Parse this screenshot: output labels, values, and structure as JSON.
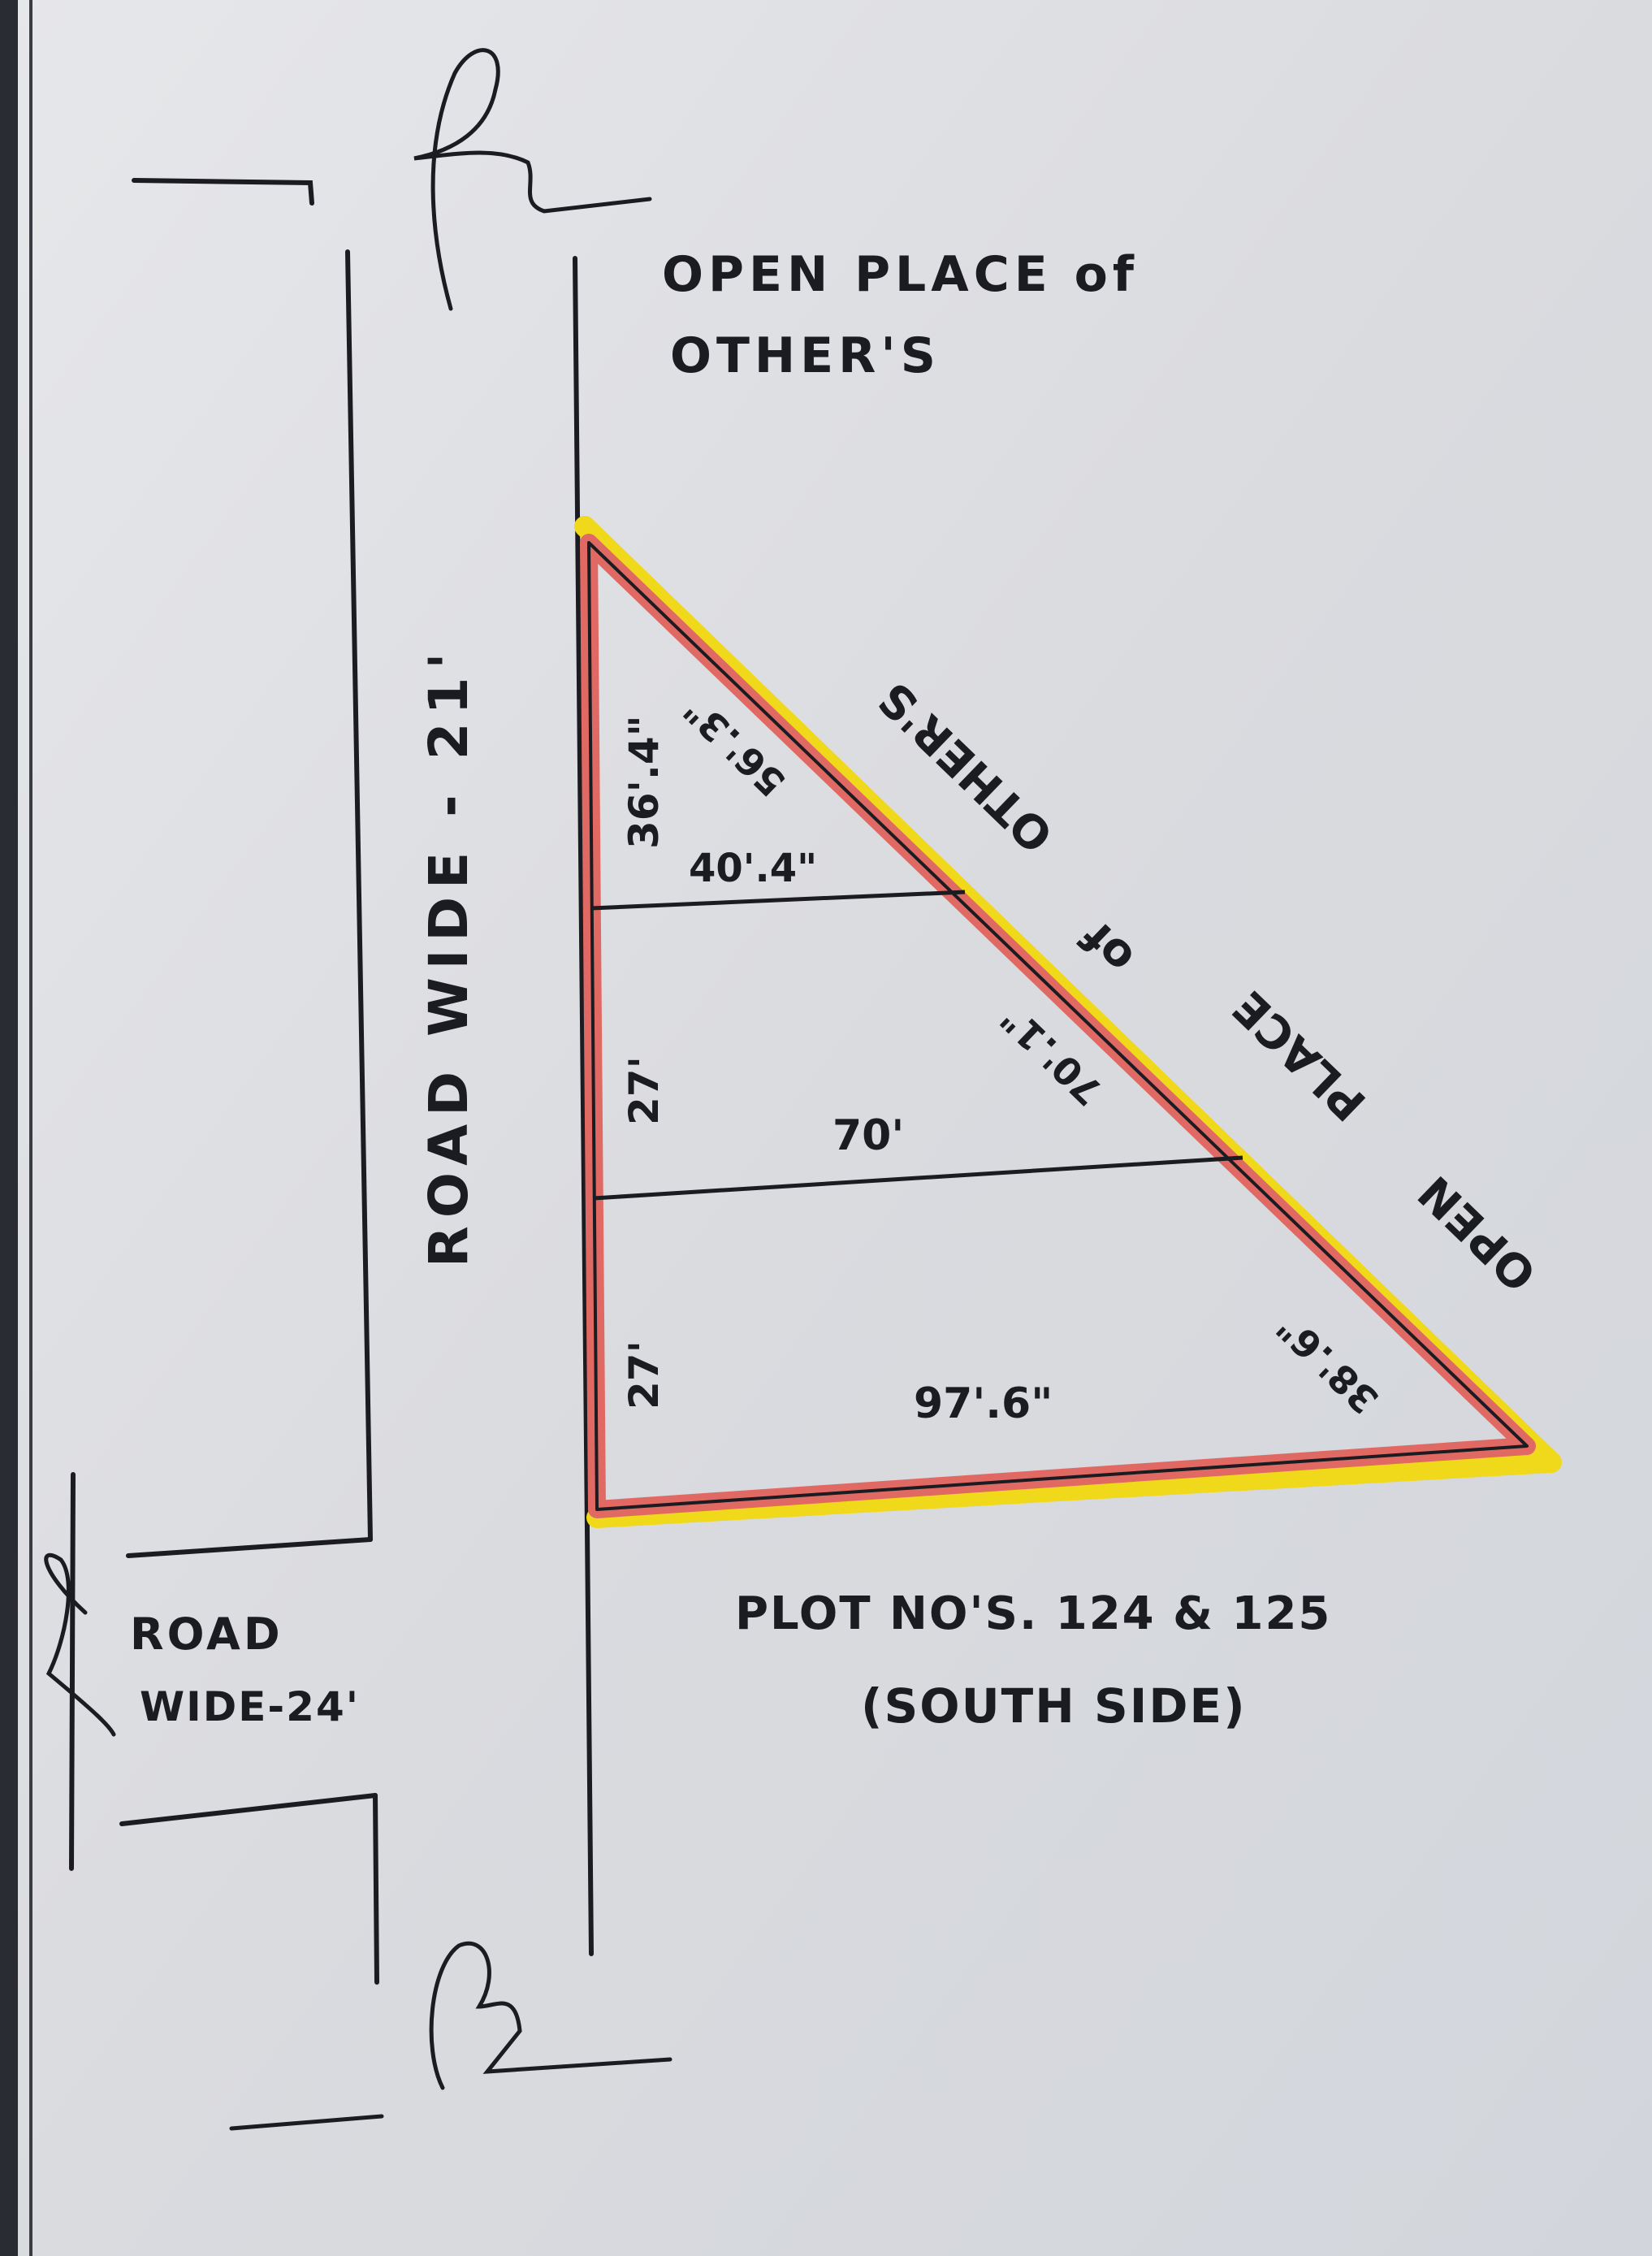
{
  "labels": {
    "open_place_line1": "OPEN PLACE of",
    "open_place_line2": "OTHER'S",
    "road_wide_21": "ROAD WIDE - 21'",
    "road_wide_24_line1": "ROAD",
    "road_wide_24_line2": "WIDE-24'",
    "hyp_open": "OPEN",
    "hyp_place": "PLACE",
    "hyp_of": "of",
    "hyp_others": "OTHER'S",
    "plot_line1": "PLOT NO'S. 124 & 125",
    "plot_line2": "(SOUTH SIDE)"
  },
  "dimensions": {
    "left_top": "36'.4\"",
    "left_mid": "27'",
    "left_bottom": "27'",
    "hyp_top": "56'.3\"",
    "hyp_mid": "70'.1\"",
    "hyp_bottom": "38'.6\"",
    "width_1": "40'.4\"",
    "width_2": "70'",
    "width_3": "97'.6\""
  },
  "colors": {
    "paper": "#dcdde0",
    "ink": "#1b1b22",
    "plot_outline": "#e06a63",
    "highlight": "#f0d81a"
  }
}
